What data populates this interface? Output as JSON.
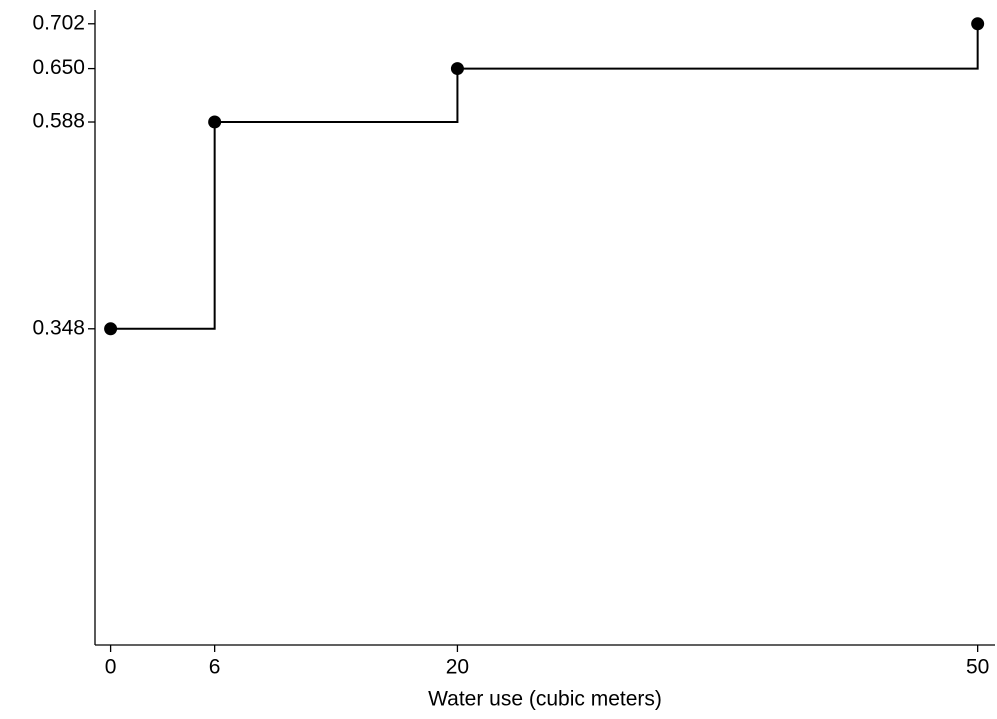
{
  "chart_data": {
    "type": "step",
    "x_label": "Water use (cubic meters)",
    "x": [
      0,
      6,
      20,
      50
    ],
    "series": [
      {
        "name": null,
        "color": "#000000",
        "values": [
          0.348,
          0.588,
          0.65,
          0.702
        ]
      }
    ],
    "xlim": [
      -0.9,
      51
    ],
    "ylim": [
      -0.019,
      0.718
    ],
    "xticks": [
      0,
      6,
      20,
      50
    ],
    "yticks": [
      0.348,
      0.588,
      {
        "value": 0.65,
        "label": "0.650"
      },
      0.702
    ],
    "grid": false,
    "markers": true
  }
}
